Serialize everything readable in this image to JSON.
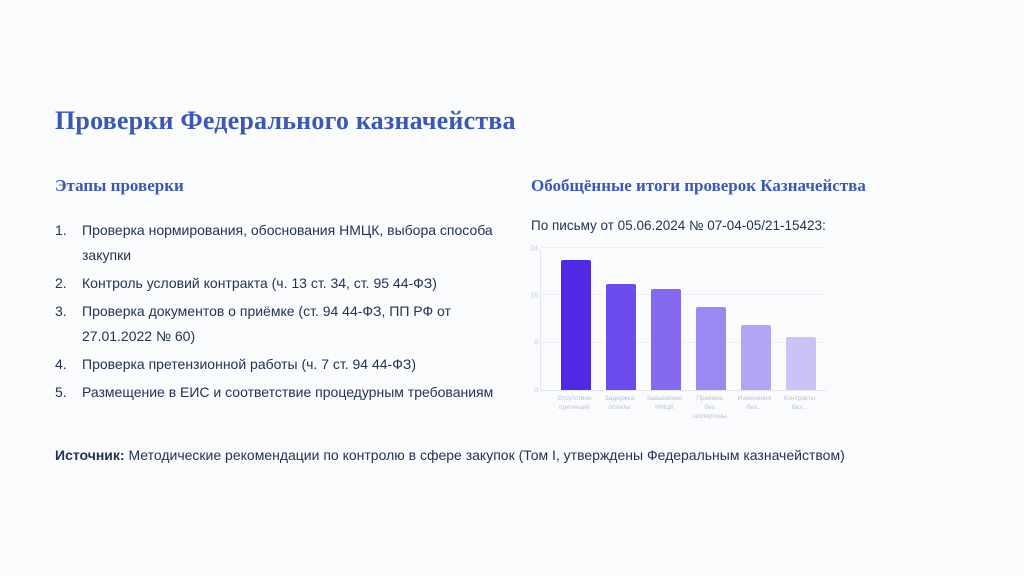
{
  "slide": {
    "title": "Проверки Федерального казначейства",
    "left": {
      "heading": "Этапы проверки",
      "items": [
        "Проверка нормирования, обоснования НМЦК, выбора способа закупки",
        "Контроль условий контракта (ч. 13 ст. 34, ст. 95 44-ФЗ)",
        "Проверка документов о приёмке (ст. 94 44-ФЗ, ПП РФ от 27.01.2022 № 60)",
        "Проверка претензионной работы (ч. 7 ст. 94 44-ФЗ)",
        "Размещение в ЕИС и соответствие процедурным требованиям"
      ]
    },
    "right": {
      "heading": "Обобщённые итоги проверок Казначейства",
      "subtitle": "По письму от 05.06.2024 № 07-04-05/21-15423:"
    },
    "source": {
      "label": "Источник:",
      "text": " Методические рекомендации по контролю в сфере закупок (Том I, утверждены Федеральным казначейством)"
    }
  },
  "chart_data": {
    "type": "bar",
    "title": "",
    "xlabel": "",
    "ylabel": "",
    "categories": [
      "Отсутствие\nпретензий",
      "Задержка\nоплаты",
      "Завышение\nНМЦК",
      "Приёмка\nбез\nэкспертизы",
      "Изменения без...",
      "Контракты без..."
    ],
    "values": [
      22,
      18,
      17,
      14,
      11,
      9
    ],
    "ylim": [
      0,
      24
    ],
    "yticks": [
      0,
      8,
      16,
      24
    ],
    "grid": true,
    "legend": false,
    "bar_colors": [
      "#5128e4",
      "#6b4beb",
      "#8468ee",
      "#9b88f1",
      "#b3a5f4",
      "#cdc2f6"
    ]
  },
  "colors": {
    "background": "#fafbfd",
    "accent_heading": "#3d58b0",
    "body_text": "#243352",
    "axis": "#e4e6ee",
    "tick_text": "#c3c8d6"
  }
}
